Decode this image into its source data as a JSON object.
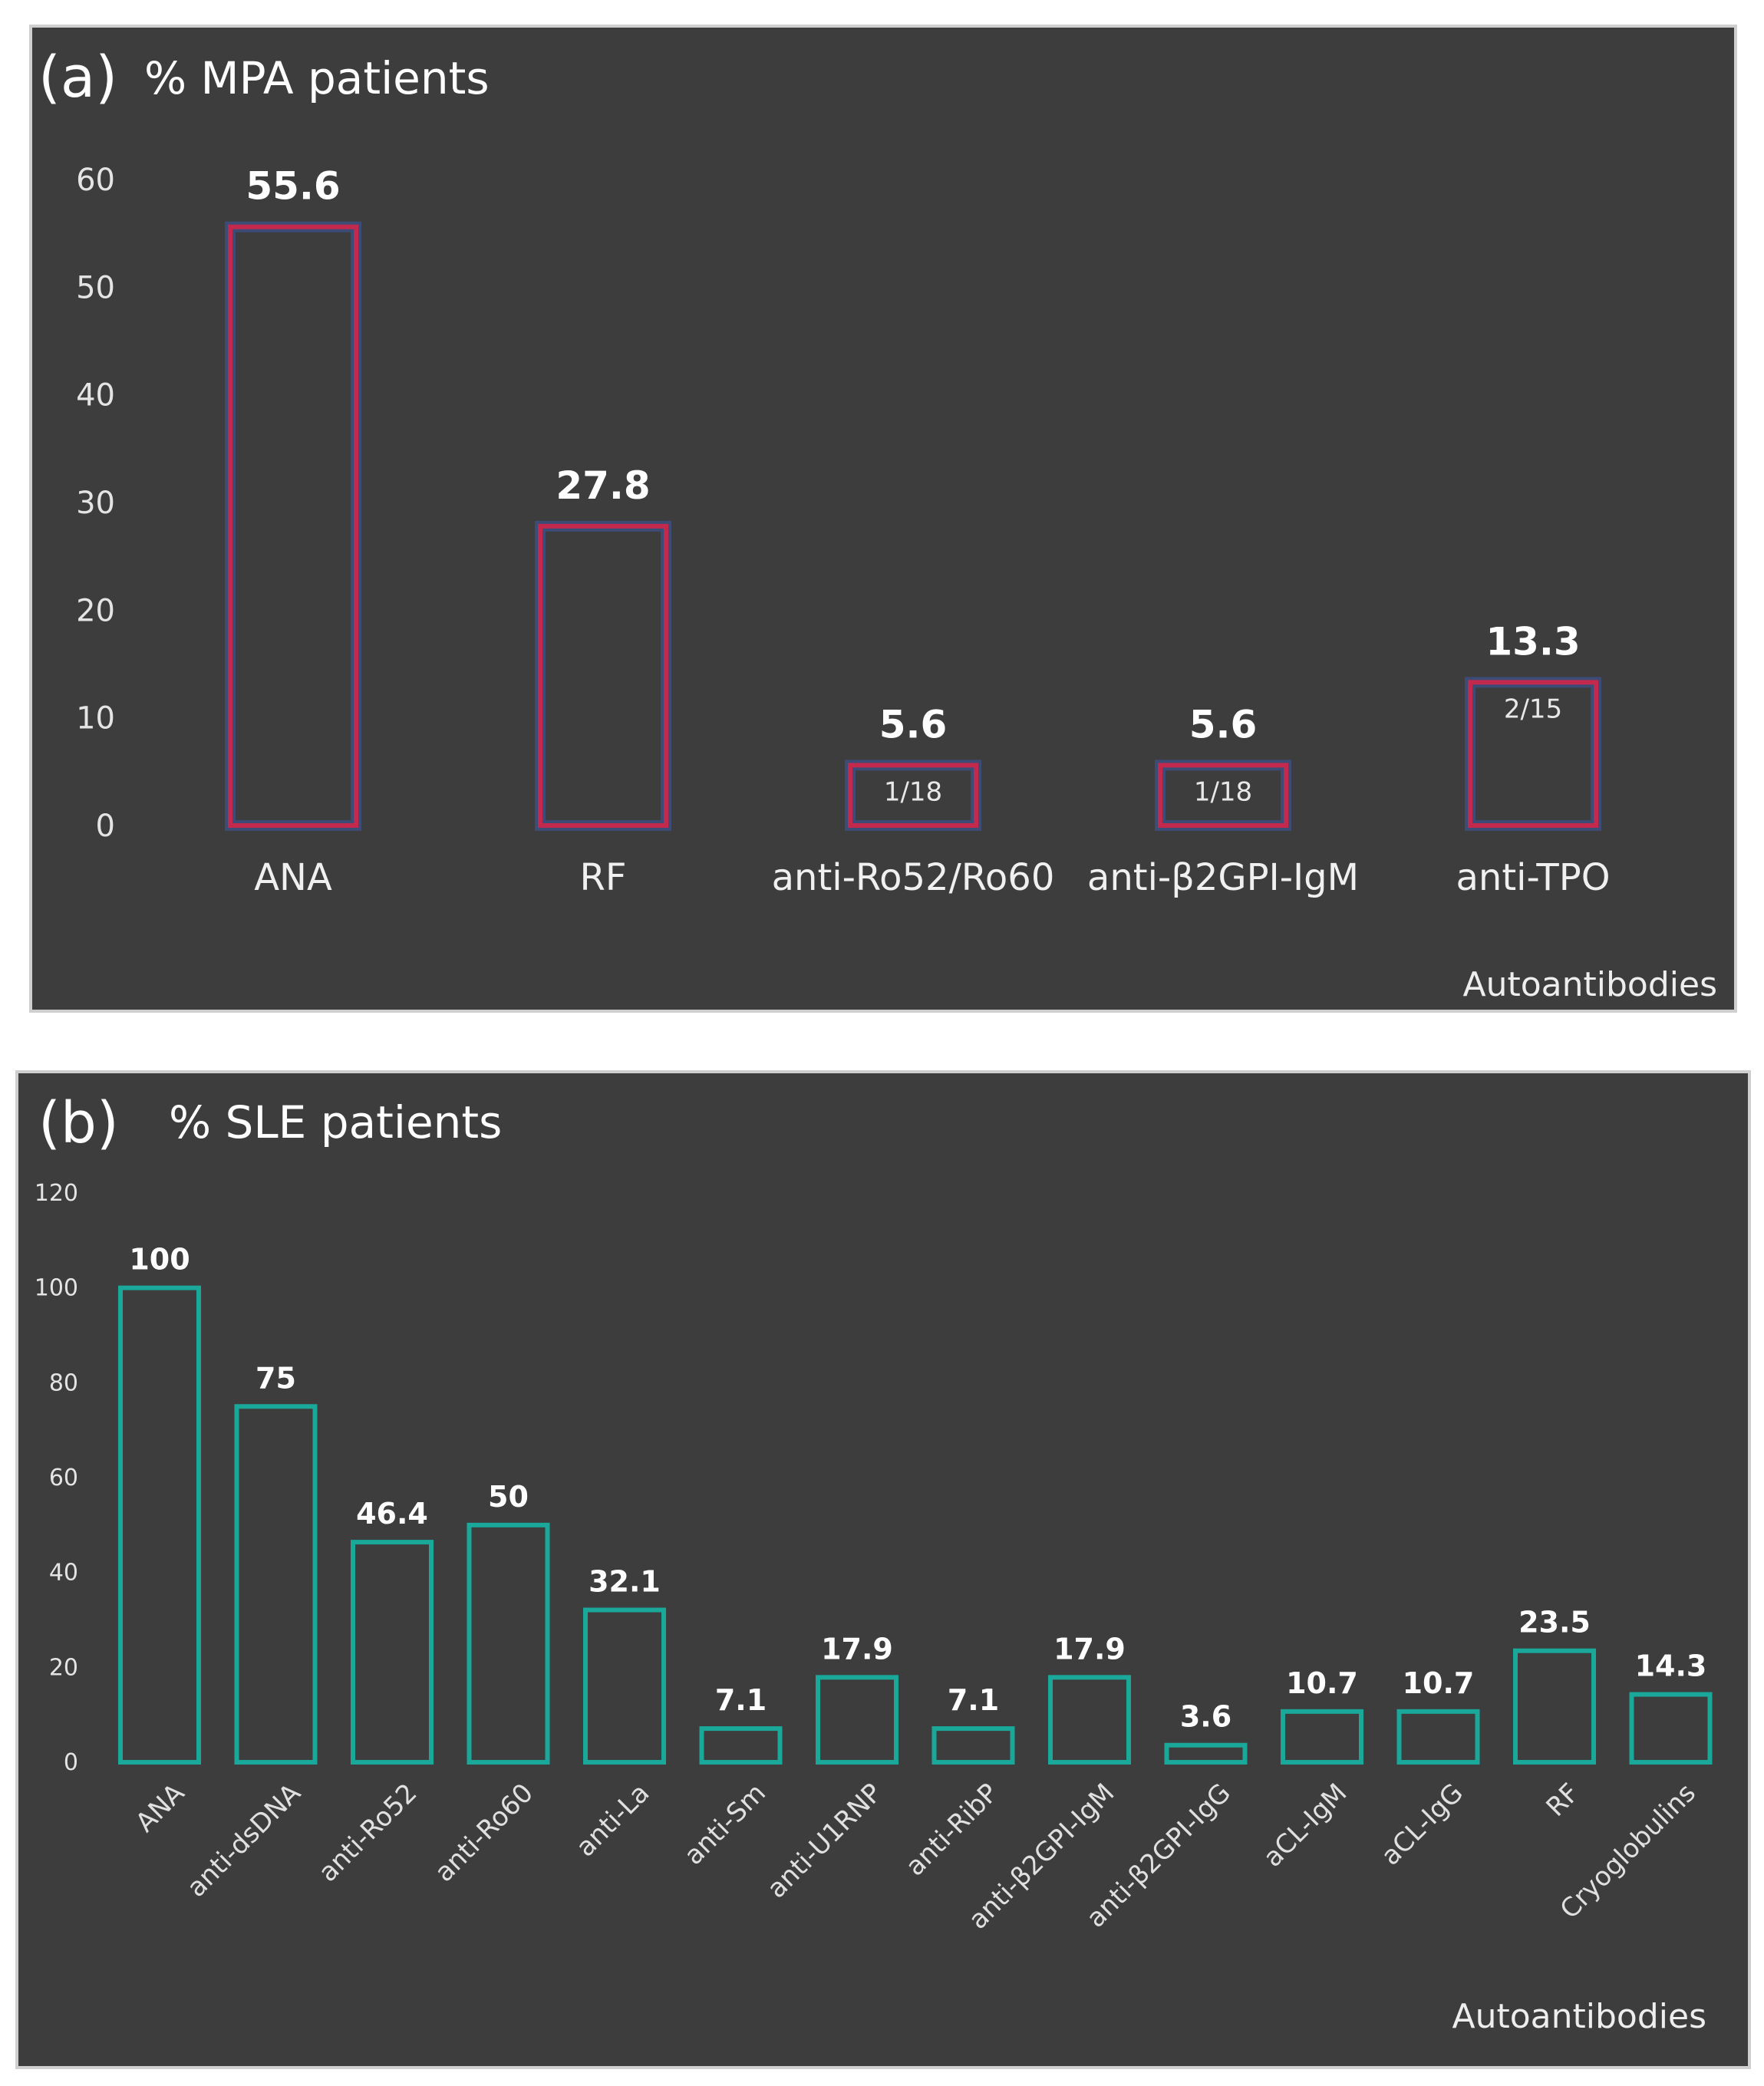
{
  "chart_data": [
    {
      "type": "bar",
      "panel_label": "(a)",
      "title": "% MPA patients",
      "xlabel": "Autoantibodies",
      "ylabel": "% MPA patients",
      "ylim": [
        0,
        60
      ],
      "yticks": [
        "0",
        "10",
        "20",
        "30",
        "40",
        "50",
        "60"
      ],
      "categories": [
        "ANA",
        "RF",
        "anti-Ro52/Ro60",
        "anti-β2GPI-IgM",
        "anti-TPO"
      ],
      "values": [
        55.6,
        27.8,
        5.6,
        5.6,
        13.3
      ],
      "value_labels": [
        "55.6",
        "27.8",
        "5.6",
        "5.6",
        "13.3"
      ],
      "fractions": [
        "",
        "",
        "1/18",
        "1/18",
        "2/15"
      ],
      "bar_color": "#c2294d",
      "bar_glow": "#3e5aa8"
    },
    {
      "type": "bar",
      "panel_label": "(b)",
      "title": "% SLE patients",
      "xlabel": "Autoantibodies",
      "ylabel": "% SLE patients",
      "ylim": [
        0,
        120
      ],
      "yticks": [
        "0",
        "20",
        "40",
        "60",
        "80",
        "100",
        "120"
      ],
      "categories": [
        "ANA",
        "anti-dsDNA",
        "anti-Ro52",
        "anti-Ro60",
        "anti-La",
        "anti-Sm",
        "anti-U1RNP",
        "anti-RibP",
        "anti-β2GPI-IgM",
        "anti-β2GPI-IgG",
        "aCL-IgM",
        "aCL-IgG",
        "RF",
        "Cryoglobulins"
      ],
      "values": [
        100,
        75,
        46.4,
        50,
        32.1,
        7.1,
        17.9,
        7.1,
        17.9,
        3.6,
        10.7,
        10.7,
        23.5,
        14.3
      ],
      "value_labels": [
        "100",
        "75",
        "46.4",
        "50",
        "32.1",
        "7.1",
        "17.9",
        "7.1",
        "17.9",
        "3.6",
        "10.7",
        "10.7",
        "23.5",
        "14.3"
      ],
      "bar_color": "#1aa89a"
    }
  ]
}
